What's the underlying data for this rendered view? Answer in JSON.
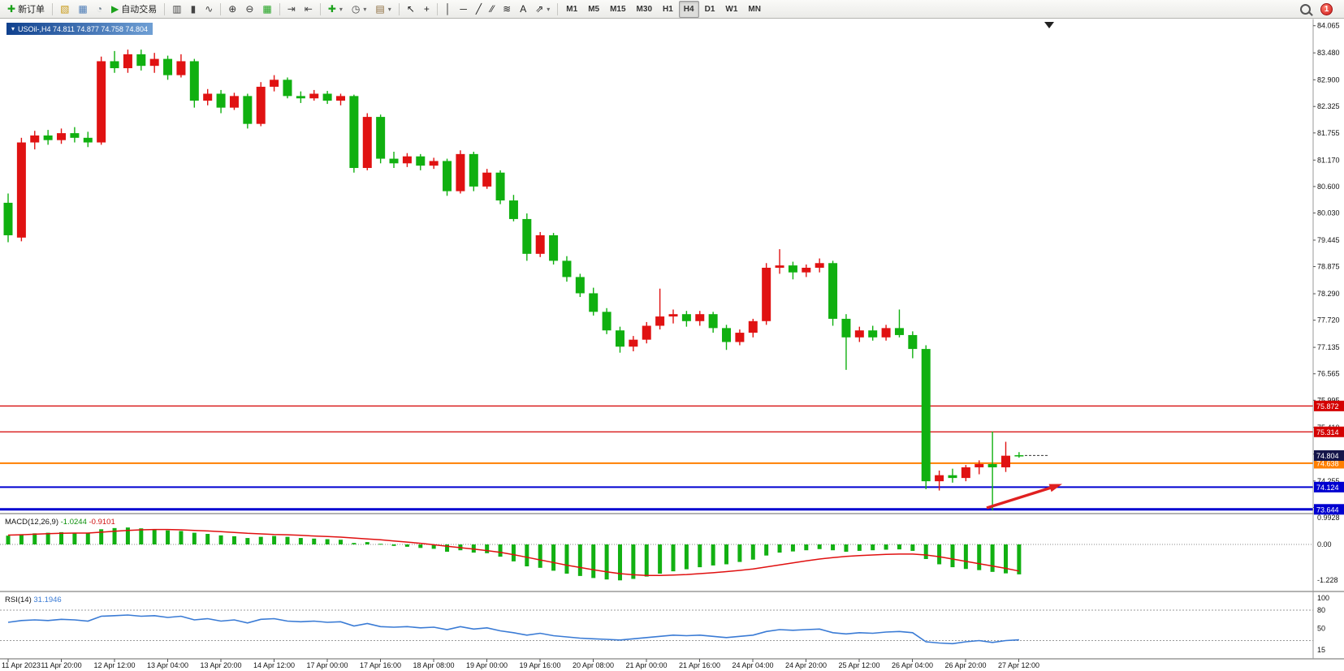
{
  "chart_title": "USOil-,H4 74.811 74.877 74.758 74.804",
  "toolbar": {
    "notification_count": "1",
    "items": [
      {
        "t": "btn",
        "name": "new-order-button",
        "glyph": "✚",
        "gc": "#18a018",
        "label": "新订单"
      },
      {
        "t": "sep"
      },
      {
        "t": "btn",
        "name": "chart-profiles-button",
        "glyph": "▧",
        "gc": "#c89a18"
      },
      {
        "t": "btn",
        "name": "data-window-button",
        "glyph": "▦",
        "gc": "#4a7ab5"
      },
      {
        "t": "btn",
        "name": "refresh-button",
        "glyph": "◔",
        "gc": "#6a7a8a"
      },
      {
        "t": "btn",
        "name": "auto-trading-button",
        "glyph": "▶",
        "gc": "#1ba11b",
        "label": "自动交易"
      },
      {
        "t": "sep"
      },
      {
        "t": "btn",
        "name": "bars-chart-button",
        "glyph": "▥",
        "gc": "#444444"
      },
      {
        "t": "btn",
        "name": "candlestick-chart-button",
        "glyph": "▮",
        "gc": "#444444"
      },
      {
        "t": "btn",
        "name": "line-chart-button",
        "glyph": "∿",
        "gc": "#444444"
      },
      {
        "t": "sep"
      },
      {
        "t": "btn",
        "name": "zoom-in-button",
        "glyph": "⊕",
        "gc": "#333333"
      },
      {
        "t": "btn",
        "name": "zoom-out-button",
        "glyph": "⊖",
        "gc": "#333333"
      },
      {
        "t": "btn",
        "name": "tile-windows-button",
        "glyph": "▦",
        "gc": "#1ba11b"
      },
      {
        "t": "sep"
      },
      {
        "t": "btn",
        "name": "auto-scroll-button",
        "glyph": "⇥",
        "gc": "#444444"
      },
      {
        "t": "btn",
        "name": "chart-shift-button",
        "glyph": "⇤",
        "gc": "#444444"
      },
      {
        "t": "sep"
      },
      {
        "t": "btn",
        "name": "indicators-button",
        "glyph": "✚",
        "gc": "#1ba11b",
        "caret": true
      },
      {
        "t": "btn",
        "name": "periods-button",
        "glyph": "◷",
        "gc": "#444444",
        "caret": true
      },
      {
        "t": "btn",
        "name": "templates-button",
        "glyph": "▤",
        "gc": "#8a6a3a",
        "caret": true
      },
      {
        "t": "sep"
      },
      {
        "t": "btn",
        "name": "cursor-button",
        "glyph": "↖",
        "gc": "#222222"
      },
      {
        "t": "btn",
        "name": "crosshair-button",
        "glyph": "+",
        "gc": "#222222"
      },
      {
        "t": "sep"
      },
      {
        "t": "btn",
        "name": "vertical-line-button",
        "glyph": "│",
        "gc": "#222222"
      },
      {
        "t": "btn",
        "name": "horizontal-line-button",
        "glyph": "─",
        "gc": "#222222"
      },
      {
        "t": "btn",
        "name": "trendline-button",
        "glyph": "╱",
        "gc": "#222222"
      },
      {
        "t": "btn",
        "name": "equidistant-channel-button",
        "glyph": "⁄⁄",
        "gc": "#222222"
      },
      {
        "t": "btn",
        "name": "fibonacci-button",
        "glyph": "≋",
        "gc": "#222222"
      },
      {
        "t": "btn",
        "name": "text-button",
        "glyph": "A",
        "gc": "#222222"
      },
      {
        "t": "btn",
        "name": "arrows-button",
        "glyph": "⇗",
        "gc": "#222222",
        "caret": true
      },
      {
        "t": "sep"
      },
      {
        "t": "tf",
        "name": "timeframe-m1-button",
        "label": "M1"
      },
      {
        "t": "tf",
        "name": "timeframe-m5-button",
        "label": "M5"
      },
      {
        "t": "tf",
        "name": "timeframe-m15-button",
        "label": "M15"
      },
      {
        "t": "tf",
        "name": "timeframe-m30-button",
        "label": "M30"
      },
      {
        "t": "tf",
        "name": "timeframe-h1-button",
        "label": "H1"
      },
      {
        "t": "tf",
        "name": "timeframe-h4-button",
        "label": "H4",
        "active": true
      },
      {
        "t": "tf",
        "name": "timeframe-d1-button",
        "label": "D1"
      },
      {
        "t": "tf",
        "name": "timeframe-w1-button",
        "label": "W1"
      },
      {
        "t": "tf",
        "name": "timeframe-mn-button",
        "label": "MN"
      }
    ]
  },
  "chart_data": [
    {
      "type": "candlestick",
      "title": "USOil-,H4 74.811 74.877 74.758 74.804",
      "symbol": "USOil-",
      "timeframe": "H4",
      "last_ohlc": {
        "open": 74.811,
        "high": 74.877,
        "low": 74.758,
        "close": 74.804
      },
      "up_color": "#e01212",
      "down_color": "#10b010",
      "ylim": [
        73.5,
        84.25
      ],
      "y_ticks": [
        84.065,
        83.48,
        82.9,
        82.325,
        81.755,
        81.17,
        80.6,
        80.03,
        79.445,
        78.875,
        78.29,
        77.72,
        77.135,
        76.565,
        75.995,
        75.41,
        74.835,
        74.255,
        73.685
      ],
      "time_labels": [
        "11 Apr 2023",
        "11 Apr 20:00",
        "12 Apr 12:00",
        "13 Apr 04:00",
        "13 Apr 20:00",
        "14 Apr 12:00",
        "17 Apr 00:00",
        "17 Apr 16:00",
        "18 Apr 08:00",
        "19 Apr 00:00",
        "19 Apr 16:00",
        "20 Apr 08:00",
        "21 Apr 00:00",
        "21 Apr 16:00",
        "24 Apr 04:00",
        "24 Apr 20:00",
        "25 Apr 12:00",
        "26 Apr 04:00",
        "26 Apr 20:00",
        "27 Apr 12:00"
      ],
      "ohlc": [
        [
          80.25,
          80.45,
          79.4,
          79.55
        ],
        [
          79.5,
          81.65,
          79.42,
          81.55
        ],
        [
          81.55,
          81.8,
          81.4,
          81.7
        ],
        [
          81.7,
          81.82,
          81.5,
          81.6
        ],
        [
          81.6,
          81.85,
          81.52,
          81.75
        ],
        [
          81.75,
          81.88,
          81.55,
          81.65
        ],
        [
          81.65,
          81.78,
          81.45,
          81.55
        ],
        [
          81.55,
          83.4,
          81.5,
          83.3
        ],
        [
          83.3,
          83.52,
          83.05,
          83.15
        ],
        [
          83.15,
          83.55,
          83.05,
          83.45
        ],
        [
          83.45,
          83.55,
          83.1,
          83.2
        ],
        [
          83.2,
          83.48,
          83.05,
          83.35
        ],
        [
          83.35,
          83.42,
          82.9,
          83.0
        ],
        [
          83.0,
          83.45,
          82.95,
          83.3
        ],
        [
          83.3,
          83.35,
          82.3,
          82.45
        ],
        [
          82.45,
          82.7,
          82.35,
          82.6
        ],
        [
          82.6,
          82.68,
          82.18,
          82.3
        ],
        [
          82.3,
          82.62,
          82.25,
          82.55
        ],
        [
          82.55,
          82.6,
          81.85,
          81.95
        ],
        [
          81.95,
          82.85,
          81.9,
          82.75
        ],
        [
          82.75,
          83.0,
          82.65,
          82.9
        ],
        [
          82.9,
          82.95,
          82.5,
          82.55
        ],
        [
          82.55,
          82.65,
          82.4,
          82.5
        ],
        [
          82.5,
          82.68,
          82.45,
          82.6
        ],
        [
          82.6,
          82.66,
          82.38,
          82.45
        ],
        [
          82.45,
          82.6,
          82.35,
          82.55
        ],
        [
          82.55,
          82.58,
          80.9,
          81.0
        ],
        [
          81.0,
          82.18,
          80.95,
          82.1
        ],
        [
          82.1,
          82.15,
          81.1,
          81.2
        ],
        [
          81.2,
          81.35,
          81.0,
          81.1
        ],
        [
          81.1,
          81.32,
          81.02,
          81.25
        ],
        [
          81.25,
          81.3,
          80.95,
          81.05
        ],
        [
          81.05,
          81.22,
          80.98,
          81.15
        ],
        [
          81.15,
          81.2,
          80.4,
          80.5
        ],
        [
          80.5,
          81.38,
          80.45,
          81.3
        ],
        [
          81.3,
          81.35,
          80.5,
          80.6
        ],
        [
          80.6,
          80.98,
          80.55,
          80.9
        ],
        [
          80.9,
          80.95,
          80.22,
          80.3
        ],
        [
          80.3,
          80.42,
          79.85,
          79.9
        ],
        [
          79.9,
          80.02,
          79.0,
          79.15
        ],
        [
          79.15,
          79.62,
          79.08,
          79.55
        ],
        [
          79.55,
          79.6,
          78.92,
          79.0
        ],
        [
          79.0,
          79.1,
          78.55,
          78.65
        ],
        [
          78.65,
          78.72,
          78.22,
          78.3
        ],
        [
          78.3,
          78.42,
          77.82,
          77.9
        ],
        [
          77.9,
          77.98,
          77.42,
          77.5
        ],
        [
          77.5,
          77.58,
          77.02,
          77.15
        ],
        [
          77.15,
          77.38,
          77.05,
          77.3
        ],
        [
          77.3,
          77.68,
          77.22,
          77.6
        ],
        [
          77.6,
          78.4,
          77.52,
          77.8
        ],
        [
          77.8,
          77.95,
          77.65,
          77.85
        ],
        [
          77.85,
          77.92,
          77.58,
          77.7
        ],
        [
          77.7,
          77.92,
          77.6,
          77.85
        ],
        [
          77.85,
          77.9,
          77.45,
          77.55
        ],
        [
          77.55,
          77.62,
          77.08,
          77.25
        ],
        [
          77.25,
          77.52,
          77.18,
          77.45
        ],
        [
          77.45,
          77.75,
          77.35,
          77.7
        ],
        [
          77.7,
          78.95,
          77.62,
          78.85
        ],
        [
          78.85,
          79.25,
          78.72,
          78.9
        ],
        [
          78.9,
          78.98,
          78.6,
          78.75
        ],
        [
          78.75,
          78.92,
          78.65,
          78.85
        ],
        [
          78.85,
          79.05,
          78.75,
          78.95
        ],
        [
          78.95,
          79.0,
          77.6,
          77.75
        ],
        [
          77.75,
          77.85,
          76.65,
          77.35
        ],
        [
          77.35,
          77.58,
          77.25,
          77.5
        ],
        [
          77.5,
          77.6,
          77.28,
          77.35
        ],
        [
          77.35,
          77.62,
          77.28,
          77.55
        ],
        [
          77.55,
          77.95,
          77.35,
          77.4
        ],
        [
          77.4,
          77.48,
          76.9,
          77.1
        ],
        [
          77.1,
          77.18,
          74.08,
          74.25
        ],
        [
          74.25,
          74.48,
          74.05,
          74.38
        ],
        [
          74.38,
          74.52,
          74.22,
          74.32
        ],
        [
          74.32,
          74.6,
          74.25,
          74.55
        ],
        [
          74.55,
          74.7,
          74.4,
          74.62
        ],
        [
          74.62,
          75.32,
          73.62,
          74.55
        ],
        [
          74.55,
          75.1,
          74.45,
          74.8
        ],
        [
          74.811,
          74.877,
          74.758,
          74.804
        ]
      ],
      "hlines": [
        {
          "price": 75.872,
          "badge": "75.872",
          "color": "#d40000",
          "width": 1.2
        },
        {
          "price": 75.314,
          "badge": "75.314",
          "color": "#d40000",
          "width": 1.2
        },
        {
          "price": 74.638,
          "badge": "74.638",
          "color": "#ff7f00",
          "width": 2
        },
        {
          "price": 74.124,
          "badge": "74.124",
          "color": "#0000d0",
          "width": 2
        },
        {
          "price": 73.644,
          "badge": "73.644",
          "color": "#0000d0",
          "width": 3
        }
      ],
      "current_price": {
        "value": 74.804,
        "badge": "74.804",
        "color": "#15154a"
      },
      "arrow_annotation": {
        "color": "#e02020"
      }
    },
    {
      "type": "bar",
      "name": "MACD",
      "label": "MACD(12,26,9) -1.0244 -0.9101",
      "label_parts": [
        {
          "text": "MACD(12,26,9) ",
          "color": "#111111"
        },
        {
          "text": "-1.0244 ",
          "color": "#0a8f0a"
        },
        {
          "text": "-0.9101",
          "color": "#d01010"
        }
      ],
      "bar_color": "#12b012",
      "signal_color": "#e01010",
      "y_ticks": [
        0.9928,
        0,
        -1.228
      ],
      "y_tick_labels": [
        "0.9928",
        "0.00",
        "-1.228"
      ],
      "values": [
        0.3,
        0.35,
        0.38,
        0.4,
        0.42,
        0.4,
        0.38,
        0.52,
        0.56,
        0.58,
        0.55,
        0.52,
        0.48,
        0.46,
        0.4,
        0.36,
        0.31,
        0.28,
        0.22,
        0.26,
        0.29,
        0.26,
        0.22,
        0.2,
        0.18,
        0.16,
        0.05,
        0.08,
        0.02,
        -0.05,
        -0.08,
        -0.12,
        -0.15,
        -0.25,
        -0.2,
        -0.28,
        -0.3,
        -0.42,
        -0.58,
        -0.75,
        -0.8,
        -0.9,
        -1.0,
        -1.08,
        -1.15,
        -1.2,
        -1.23,
        -1.18,
        -1.1,
        -1.0,
        -0.92,
        -0.85,
        -0.78,
        -0.72,
        -0.68,
        -0.6,
        -0.52,
        -0.38,
        -0.28,
        -0.24,
        -0.2,
        -0.16,
        -0.2,
        -0.25,
        -0.22,
        -0.2,
        -0.18,
        -0.17,
        -0.22,
        -0.5,
        -0.68,
        -0.78,
        -0.84,
        -0.88,
        -0.94,
        -0.99,
        -1.0244
      ],
      "signal": [
        0.32,
        0.33,
        0.35,
        0.37,
        0.38,
        0.39,
        0.39,
        0.42,
        0.45,
        0.48,
        0.5,
        0.51,
        0.51,
        0.5,
        0.48,
        0.46,
        0.44,
        0.41,
        0.38,
        0.36,
        0.34,
        0.33,
        0.31,
        0.29,
        0.27,
        0.25,
        0.22,
        0.19,
        0.16,
        0.12,
        0.08,
        0.04,
        -0.01,
        -0.06,
        -0.11,
        -0.16,
        -0.21,
        -0.27,
        -0.35,
        -0.44,
        -0.53,
        -0.62,
        -0.71,
        -0.79,
        -0.87,
        -0.94,
        -1.0,
        -1.04,
        -1.06,
        -1.06,
        -1.05,
        -1.03,
        -1.0,
        -0.97,
        -0.93,
        -0.89,
        -0.84,
        -0.77,
        -0.7,
        -0.63,
        -0.56,
        -0.5,
        -0.45,
        -0.41,
        -0.38,
        -0.36,
        -0.34,
        -0.33,
        -0.33,
        -0.36,
        -0.42,
        -0.5,
        -0.58,
        -0.66,
        -0.74,
        -0.82,
        -0.9101
      ]
    },
    {
      "type": "line",
      "name": "RSI",
      "label": "RSI(14) 31.1946",
      "label_parts": [
        {
          "text": "RSI(14) ",
          "color": "#111111"
        },
        {
          "text": "31.1946",
          "color": "#3a7bd5"
        }
      ],
      "line_color": "#3a7bd5",
      "y_ticks": [
        100,
        80,
        50,
        15
      ],
      "y_tick_labels": [
        "100",
        "80",
        "50",
        "15"
      ],
      "levels": [
        80,
        30
      ],
      "values": [
        60,
        63,
        64,
        63,
        65,
        64,
        62,
        70,
        71,
        72,
        70,
        71,
        68,
        70,
        64,
        66,
        62,
        64,
        59,
        65,
        66,
        62,
        61,
        62,
        60,
        61,
        54,
        58,
        53,
        52,
        53,
        51,
        52,
        48,
        53,
        49,
        51,
        46,
        43,
        39,
        42,
        38,
        36,
        34,
        33,
        32,
        31,
        33,
        35,
        37,
        39,
        38,
        39,
        37,
        35,
        37,
        39,
        45,
        48,
        47,
        48,
        49,
        43,
        41,
        43,
        42,
        44,
        45,
        43,
        28,
        26,
        25,
        28,
        30,
        27,
        30,
        31.19
      ]
    }
  ]
}
